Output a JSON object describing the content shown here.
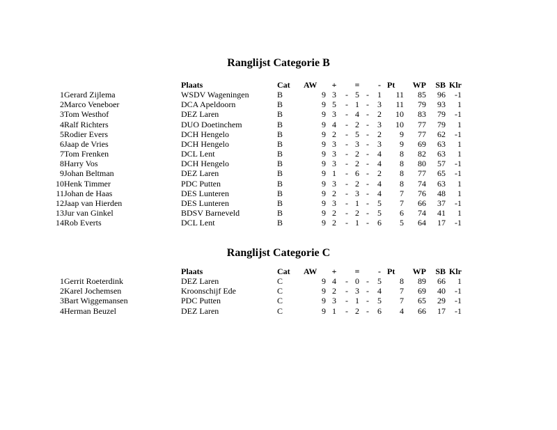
{
  "score_separator": "-",
  "sections": [
    {
      "title": "Ranglijst Categorie B",
      "headers": {
        "plaats": "Plaats",
        "cat": "Cat",
        "aw": "AW",
        "plus": "+",
        "eq": "=",
        "minus": "-",
        "pt": "Pt",
        "wp": "WP",
        "sb": "SB",
        "klr": "Klr"
      },
      "rows": [
        {
          "rank": "1",
          "name": "Gerard Zijlema",
          "plaats": "WSDV Wageningen",
          "cat": "B",
          "aw": "9",
          "plus": "3",
          "eq": "5",
          "minus": "1",
          "pt": "11",
          "wp": "85",
          "sb": "96",
          "klr": "-1"
        },
        {
          "rank": "2",
          "name": "Marco Veneboer",
          "plaats": "DCA Apeldoorn",
          "cat": "B",
          "aw": "9",
          "plus": "5",
          "eq": "1",
          "minus": "3",
          "pt": "11",
          "wp": "79",
          "sb": "93",
          "klr": "1"
        },
        {
          "rank": "3",
          "name": "Tom Westhof",
          "plaats": "DEZ Laren",
          "cat": "B",
          "aw": "9",
          "plus": "3",
          "eq": "4",
          "minus": "2",
          "pt": "10",
          "wp": "83",
          "sb": "79",
          "klr": "-1"
        },
        {
          "rank": "4",
          "name": "Ralf Richters",
          "plaats": "DUO Doetinchem",
          "cat": "B",
          "aw": "9",
          "plus": "4",
          "eq": "2",
          "minus": "3",
          "pt": "10",
          "wp": "77",
          "sb": "79",
          "klr": "1"
        },
        {
          "rank": "5",
          "name": "Rodier Evers",
          "plaats": "DCH Hengelo",
          "cat": "B",
          "aw": "9",
          "plus": "2",
          "eq": "5",
          "minus": "2",
          "pt": "9",
          "wp": "77",
          "sb": "62",
          "klr": "-1"
        },
        {
          "rank": "6",
          "name": "Jaap de Vries",
          "plaats": "DCH Hengelo",
          "cat": "B",
          "aw": "9",
          "plus": "3",
          "eq": "3",
          "minus": "3",
          "pt": "9",
          "wp": "69",
          "sb": "63",
          "klr": "1"
        },
        {
          "rank": "7",
          "name": "Tom Frenken",
          "plaats": "DCL Lent",
          "cat": "B",
          "aw": "9",
          "plus": "3",
          "eq": "2",
          "minus": "4",
          "pt": "8",
          "wp": "82",
          "sb": "63",
          "klr": "1"
        },
        {
          "rank": "8",
          "name": "Harry Vos",
          "plaats": "DCH Hengelo",
          "cat": "B",
          "aw": "9",
          "plus": "3",
          "eq": "2",
          "minus": "4",
          "pt": "8",
          "wp": "80",
          "sb": "57",
          "klr": "-1"
        },
        {
          "rank": "9",
          "name": "Johan Beltman",
          "plaats": "DEZ Laren",
          "cat": "B",
          "aw": "9",
          "plus": "1",
          "eq": "6",
          "minus": "2",
          "pt": "8",
          "wp": "77",
          "sb": "65",
          "klr": "-1"
        },
        {
          "rank": "10",
          "name": "Henk Timmer",
          "plaats": "PDC Putten",
          "cat": "B",
          "aw": "9",
          "plus": "3",
          "eq": "2",
          "minus": "4",
          "pt": "8",
          "wp": "74",
          "sb": "63",
          "klr": "1"
        },
        {
          "rank": "11",
          "name": "Johan de Haas",
          "plaats": "DES Lunteren",
          "cat": "B",
          "aw": "9",
          "plus": "2",
          "eq": "3",
          "minus": "4",
          "pt": "7",
          "wp": "76",
          "sb": "48",
          "klr": "1"
        },
        {
          "rank": "12",
          "name": "Jaap van Hierden",
          "plaats": "DES Lunteren",
          "cat": "B",
          "aw": "9",
          "plus": "3",
          "eq": "1",
          "minus": "5",
          "pt": "7",
          "wp": "66",
          "sb": "37",
          "klr": "-1"
        },
        {
          "rank": "13",
          "name": "Jur van Ginkel",
          "plaats": "BDSV Barneveld",
          "cat": "B",
          "aw": "9",
          "plus": "2",
          "eq": "2",
          "minus": "5",
          "pt": "6",
          "wp": "74",
          "sb": "41",
          "klr": "1"
        },
        {
          "rank": "14",
          "name": "Rob Everts",
          "plaats": "DCL Lent",
          "cat": "B",
          "aw": "9",
          "plus": "2",
          "eq": "1",
          "minus": "6",
          "pt": "5",
          "wp": "64",
          "sb": "17",
          "klr": "-1"
        }
      ]
    },
    {
      "title": "Ranglijst Categorie C",
      "headers": {
        "plaats": "Plaats",
        "cat": "Cat",
        "aw": "AW",
        "plus": "+",
        "eq": "=",
        "minus": "-",
        "pt": "Pt",
        "wp": "WP",
        "sb": "SB",
        "klr": "Klr"
      },
      "rows": [
        {
          "rank": "1",
          "name": "Gerrit Roeterdink",
          "plaats": "DEZ Laren",
          "cat": "C",
          "aw": "9",
          "plus": "4",
          "eq": "0",
          "minus": "5",
          "pt": "8",
          "wp": "89",
          "sb": "66",
          "klr": "1"
        },
        {
          "rank": "2",
          "name": "Karel Jochemsen",
          "plaats": "Kroonschijf Ede",
          "cat": "C",
          "aw": "9",
          "plus": "2",
          "eq": "3",
          "minus": "4",
          "pt": "7",
          "wp": "69",
          "sb": "40",
          "klr": "-1"
        },
        {
          "rank": "3",
          "name": "Bart Wiggemansen",
          "plaats": "PDC Putten",
          "cat": "C",
          "aw": "9",
          "plus": "3",
          "eq": "1",
          "minus": "5",
          "pt": "7",
          "wp": "65",
          "sb": "29",
          "klr": "-1"
        },
        {
          "rank": "4",
          "name": "Herman Beuzel",
          "plaats": "DEZ Laren",
          "cat": "C",
          "aw": "9",
          "plus": "1",
          "eq": "2",
          "minus": "6",
          "pt": "4",
          "wp": "66",
          "sb": "17",
          "klr": "-1"
        }
      ]
    }
  ]
}
